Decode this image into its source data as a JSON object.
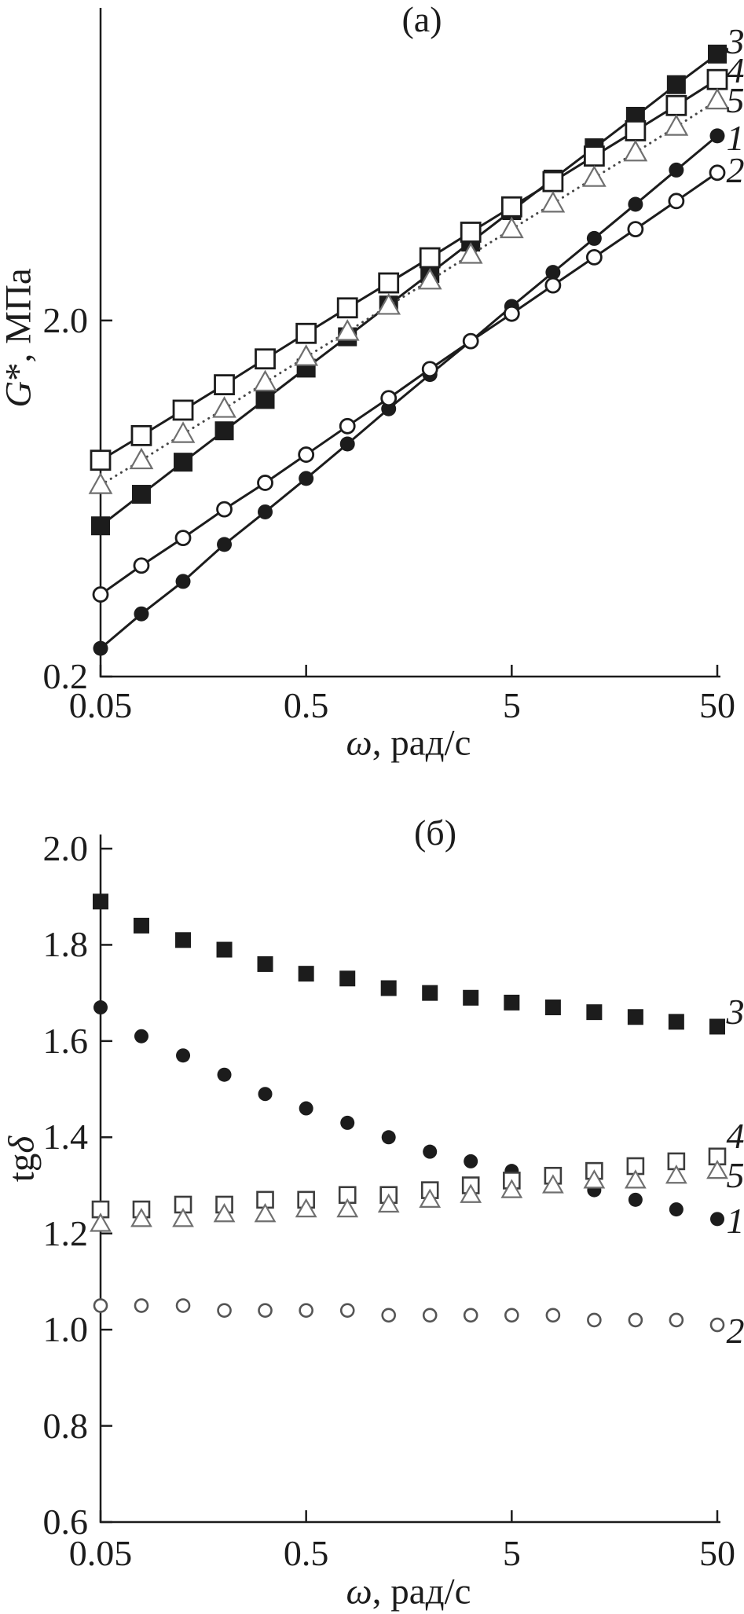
{
  "figure": {
    "background": "#ffffff",
    "ink": "#1c1c1c",
    "marker_fill": "#ffffff"
  },
  "chart_data": [
    {
      "id": "a",
      "type": "line",
      "title": "(a)",
      "xlabel": "ω, рад/с",
      "ylabel": "G*, МПа",
      "xlabel_parts": {
        "italic": "ω",
        "rest": ", рад/с"
      },
      "ylabel_parts": {
        "italic": "G",
        "rest": "*, МПа"
      },
      "x_scale": "log",
      "y_scale": "log",
      "xlim": [
        0.05,
        50
      ],
      "ylim": [
        0.2,
        15.1
      ],
      "grid": false,
      "legend_position": "right-edge-numbers",
      "x_ticks": [
        {
          "value": 0.05,
          "label": "0.05"
        },
        {
          "value": 0.5,
          "label": "0.5"
        },
        {
          "value": 5,
          "label": "5"
        },
        {
          "value": 50,
          "label": "50"
        }
      ],
      "y_ticks": [
        {
          "value": 2.0,
          "label": "2.0"
        },
        {
          "value": 0.2,
          "label": "0.2"
        }
      ],
      "x": [
        0.05,
        0.079,
        0.126,
        0.2,
        0.316,
        0.5,
        0.794,
        1.26,
        2.0,
        3.16,
        5.0,
        7.94,
        12.6,
        20.0,
        31.6,
        50.0
      ],
      "series": [
        {
          "name": "1",
          "marker": "circle-filled",
          "line": "solid",
          "color": "#1c1c1c",
          "line_color": "#1c1c1c",
          "values": [
            0.24,
            0.3,
            0.37,
            0.47,
            0.58,
            0.72,
            0.9,
            1.13,
            1.41,
            1.75,
            2.19,
            2.73,
            3.4,
            4.24,
            5.29,
            6.6
          ]
        },
        {
          "name": "2",
          "marker": "circle-open",
          "line": "solid",
          "color": "#1c1c1c",
          "line_color": "#1c1c1c",
          "values": [
            0.34,
            0.41,
            0.49,
            0.59,
            0.7,
            0.84,
            1.01,
            1.21,
            1.46,
            1.75,
            2.09,
            2.51,
            3.01,
            3.61,
            4.33,
            5.2
          ]
        },
        {
          "name": "3",
          "marker": "square-filled",
          "line": "solid",
          "color": "#1c1c1c",
          "line_color": "#1c1c1c",
          "values": [
            0.53,
            0.65,
            0.8,
            0.98,
            1.2,
            1.47,
            1.8,
            2.21,
            2.71,
            3.32,
            4.07,
            4.99,
            6.11,
            7.49,
            9.19,
            11.2
          ]
        },
        {
          "name": "4",
          "marker": "square-open",
          "line": "solid",
          "color": "#1c1c1c",
          "line_color": "#1c1c1c",
          "values": [
            0.81,
            0.95,
            1.12,
            1.32,
            1.56,
            1.84,
            2.17,
            2.55,
            3.0,
            3.54,
            4.17,
            4.91,
            5.79,
            6.82,
            8.03,
            9.5
          ]
        },
        {
          "name": "5",
          "marker": "triangle-open",
          "line": "dotted",
          "color": "#6f6f6f",
          "line_color": "#454545",
          "values": [
            0.69,
            0.81,
            0.96,
            1.13,
            1.34,
            1.58,
            1.86,
            2.2,
            2.59,
            3.06,
            3.61,
            4.26,
            5.03,
            5.93,
            7.0,
            8.3
          ]
        }
      ]
    },
    {
      "id": "b",
      "type": "scatter",
      "title": "(б)",
      "xlabel": "ω, рад/с",
      "ylabel": "tgδ",
      "xlabel_parts": {
        "italic": "ω",
        "rest": ", рад/с"
      },
      "ylabel_parts": {
        "pre": "tg",
        "italic": "δ"
      },
      "x_scale": "log",
      "y_scale": "linear",
      "xlim": [
        0.05,
        50
      ],
      "ylim": [
        0.6,
        2.0
      ],
      "grid": false,
      "legend_position": "right-edge-numbers",
      "x_ticks": [
        {
          "value": 0.05,
          "label": "0.05"
        },
        {
          "value": 0.5,
          "label": "0.5"
        },
        {
          "value": 5,
          "label": "5"
        },
        {
          "value": 50,
          "label": "50"
        }
      ],
      "y_ticks": [
        {
          "value": 2.0,
          "label": "2.0"
        },
        {
          "value": 1.8,
          "label": "1.8"
        },
        {
          "value": 1.6,
          "label": "1.6"
        },
        {
          "value": 1.4,
          "label": "1.4"
        },
        {
          "value": 1.2,
          "label": "1.2"
        },
        {
          "value": 1.0,
          "label": "1.0"
        },
        {
          "value": 0.8,
          "label": "0.8"
        },
        {
          "value": 0.6,
          "label": "0.6"
        }
      ],
      "x": [
        0.05,
        0.079,
        0.126,
        0.2,
        0.316,
        0.5,
        0.794,
        1.26,
        2.0,
        3.16,
        5.0,
        7.94,
        12.6,
        20.0,
        31.6,
        50.0
      ],
      "series": [
        {
          "name": "1",
          "marker": "circle-filled",
          "line": "none",
          "color": "#1c1c1c",
          "values": [
            1.67,
            1.61,
            1.57,
            1.53,
            1.49,
            1.46,
            1.43,
            1.4,
            1.37,
            1.35,
            1.33,
            1.31,
            1.29,
            1.27,
            1.25,
            1.23
          ]
        },
        {
          "name": "2",
          "marker": "circle-open",
          "line": "none",
          "color": "#555555",
          "values": [
            1.05,
            1.05,
            1.05,
            1.04,
            1.04,
            1.04,
            1.04,
            1.03,
            1.03,
            1.03,
            1.03,
            1.03,
            1.02,
            1.02,
            1.02,
            1.01
          ]
        },
        {
          "name": "3",
          "marker": "square-filled",
          "line": "none",
          "color": "#1c1c1c",
          "values": [
            1.89,
            1.84,
            1.81,
            1.79,
            1.76,
            1.74,
            1.73,
            1.71,
            1.7,
            1.69,
            1.68,
            1.67,
            1.66,
            1.65,
            1.64,
            1.63
          ]
        },
        {
          "name": "4",
          "marker": "square-open",
          "line": "none",
          "color": "#3d3d3d",
          "values": [
            1.25,
            1.25,
            1.26,
            1.26,
            1.27,
            1.27,
            1.28,
            1.28,
            1.29,
            1.3,
            1.31,
            1.32,
            1.33,
            1.34,
            1.35,
            1.36
          ]
        },
        {
          "name": "5",
          "marker": "triangle-open",
          "line": "none",
          "color": "#6f6f6f",
          "values": [
            1.22,
            1.23,
            1.23,
            1.24,
            1.24,
            1.25,
            1.25,
            1.26,
            1.27,
            1.28,
            1.29,
            1.3,
            1.31,
            1.31,
            1.32,
            1.33
          ]
        }
      ]
    }
  ]
}
